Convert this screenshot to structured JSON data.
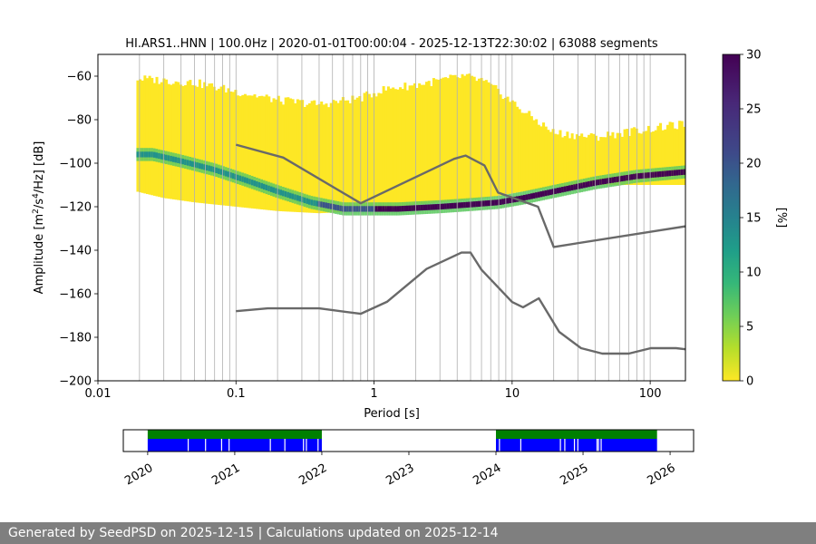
{
  "colors": {
    "yellow": "#fde725",
    "yellow_green": "#d2e21b",
    "green": "#5ec962",
    "teal": "#21918c",
    "blue": "#3b528b",
    "purple": "#440154",
    "noise_model": "#696969",
    "availability_green": "#008000",
    "availability_blue": "#0000ff",
    "footer_bg": "#7f7f7f"
  },
  "chart_data": [
    {
      "type": "heatmap",
      "title": "HI.ARS1..HNN | 100.0Hz | 2020-01-01T00:00:04 - 2025-12-13T22:30:02 | 63088 segments",
      "xlabel": "Period [s]",
      "ylabel": "Amplitude [m²/s⁴/Hz] [dB]",
      "xscale": "log",
      "xlim": [
        0.01,
        180
      ],
      "ylim": [
        -200,
        -50
      ],
      "x_ticks": [
        0.01,
        0.1,
        1,
        10,
        100
      ],
      "x_tick_labels": [
        "0.01",
        "0.1",
        "1",
        "10",
        "100"
      ],
      "y_ticks": [
        -200,
        -180,
        -160,
        -140,
        -120,
        -100,
        -80,
        -60
      ],
      "y_tick_labels": [
        "−200",
        "−180",
        "−160",
        "−140",
        "−120",
        "−100",
        "−80",
        "−60"
      ],
      "grid": true,
      "psd_envelope": {
        "period": [
          0.019,
          0.03,
          0.05,
          0.1,
          0.2,
          0.4,
          0.8,
          1.2,
          2,
          3,
          4.5,
          6,
          8,
          12,
          20,
          40,
          80,
          180
        ],
        "upper_db": [
          -61,
          -62,
          -63,
          -67,
          -71,
          -73,
          -70,
          -66,
          -64,
          -62,
          -60,
          -62,
          -67,
          -76,
          -86,
          -88,
          -85,
          -82
        ],
        "lower_db": [
          -113,
          -116,
          -118,
          -120,
          -122,
          -123,
          -122,
          -121,
          -119,
          -118,
          -117,
          -116,
          -115,
          -113,
          -111,
          -110,
          -110,
          -110
        ]
      },
      "psd_mode": {
        "period": [
          0.019,
          0.025,
          0.04,
          0.07,
          0.12,
          0.2,
          0.35,
          0.6,
          0.8,
          1.5,
          3,
          5,
          8,
          12,
          20,
          40,
          80,
          180
        ],
        "db": [
          -96,
          -96,
          -99,
          -103,
          -108,
          -113,
          -118,
          -121,
          -121,
          -121,
          -120,
          -119,
          -118,
          -116,
          -113,
          -109,
          -106,
          -104
        ]
      },
      "noise_models": [
        {
          "name": "NHNM",
          "period": [
            0.1,
            0.22,
            0.8,
            3.8,
            4.6,
            6.3,
            7.9,
            15.4,
            20,
            180
          ],
          "db": [
            -91.5,
            -97.4,
            -118.4,
            -98,
            -96.5,
            -101,
            -113.5,
            -120,
            -138.5,
            -129
          ]
        },
        {
          "name": "NLNM",
          "period": [
            0.1,
            0.17,
            0.4,
            0.8,
            1.24,
            2.4,
            4.3,
            5.0,
            6.0,
            10,
            12,
            15.6,
            21.9,
            31.6,
            45,
            70,
            101,
            154,
            180
          ],
          "db": [
            -168,
            -166.7,
            -166.7,
            -169.2,
            -163.7,
            -148.6,
            -141.1,
            -141.1,
            -149,
            -163.8,
            -166.2,
            -162.1,
            -177.5,
            -185,
            -187.5,
            -187.5,
            -185,
            -185,
            -185.5
          ]
        }
      ],
      "colorbar": {
        "label": "[%]",
        "range": [
          0,
          30
        ],
        "ticks": [
          0,
          5,
          10,
          15,
          20,
          25,
          30
        ],
        "tick_labels": [
          "0",
          "5",
          "10",
          "15",
          "20",
          "25",
          "30"
        ]
      }
    },
    {
      "type": "availability",
      "x_ticks": [
        "2020",
        "2021",
        "2022",
        "2023",
        "2024",
        "2025",
        "2026"
      ],
      "segments": [
        {
          "start": 2020.0,
          "end": 2022.0
        },
        {
          "start": 2024.0,
          "end": 2025.85
        }
      ]
    }
  ],
  "footer": {
    "text": "Generated by SeedPSD on 2025-12-15 | Calculations updated on 2025-12-14"
  }
}
